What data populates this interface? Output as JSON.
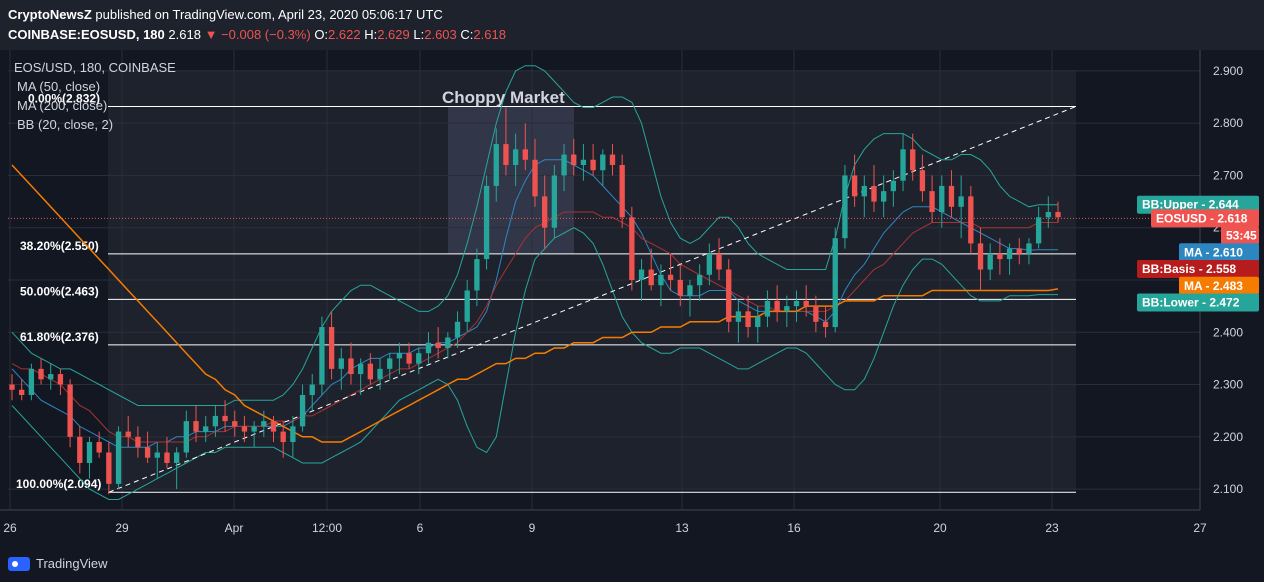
{
  "header": {
    "publisher": "CryptoNewsZ",
    "published_text": " published on TradingView.com, April 23, 2020 05:06:17 UTC",
    "symbol": "COINBASE:EOSUSD, 180",
    "last": "2.618",
    "change": "−",
    "change_text": "0.008 (−0.3%)",
    "o_label": "O:",
    "o": "2.622",
    "h_label": "H:",
    "h": "2.629",
    "l_label": "L:",
    "l": "2.603",
    "c_label": "C:",
    "c": "2.618"
  },
  "legend": {
    "symbol": "EOS/USD, 180, COINBASE",
    "ma50": "MA (50, close)",
    "ma200": "MA (200, close)",
    "bb": "BB (20, close, 2)"
  },
  "annotation": {
    "title": "Choppy Market"
  },
  "fib_levels": [
    {
      "label": "0.00%(2.832)",
      "value": 2.832
    },
    {
      "label": "38.20%(2.550)",
      "value": 2.55
    },
    {
      "label": "50.00%(2.463)",
      "value": 2.463
    },
    {
      "label": "61.80%(2.376)",
      "value": 2.376
    },
    {
      "label": "100.00%(2.094)",
      "value": 2.094
    }
  ],
  "price_tags": [
    {
      "label": "BB:Upper",
      "value": "2.644",
      "color": "#26a69a",
      "price": 2.644
    },
    {
      "label": "EOSUSD",
      "value": "2.618",
      "color": "#ef5350",
      "price": 2.618
    },
    {
      "label": "",
      "value": "53:45",
      "color": "#ef5350",
      "price": 2.585
    },
    {
      "label": "MA",
      "value": "2.610",
      "color": "#2e86c1",
      "price": 2.553
    },
    {
      "label": "BB:Basis",
      "value": "2.558",
      "color": "#b71c1c",
      "price": 2.521
    },
    {
      "label": "MA",
      "value": "2.483",
      "color": "#f57c00",
      "price": 2.489
    },
    {
      "label": "BB:Lower",
      "value": "2.472",
      "color": "#26a69a",
      "price": 2.457
    }
  ],
  "footer": {
    "brand": "TradingView"
  },
  "colors": {
    "up": "#26a69a",
    "down": "#ef5350",
    "ma50": "#ef5350",
    "ma200": "#f57c00",
    "bb": "#26a69a",
    "bg": "#131722",
    "panel": "#1e222d",
    "grid": "#2a2e39"
  },
  "chart_data": {
    "type": "candlestick",
    "y_axis": {
      "ticks": [
        "2.900",
        "2.800",
        "2.700",
        "2.600",
        "2.500",
        "2.400",
        "2.300",
        "2.200",
        "2.100"
      ],
      "range": [
        2.06,
        2.94
      ]
    },
    "x_axis": {
      "ticks": [
        "26",
        "29",
        "Apr",
        "12:00",
        "6",
        "9",
        "13",
        "16",
        "20",
        "23",
        "27"
      ]
    },
    "last_price": 2.618,
    "candles": [
      [
        2.3,
        2.32,
        2.27,
        2.29
      ],
      [
        2.29,
        2.31,
        2.27,
        2.28
      ],
      [
        2.28,
        2.34,
        2.27,
        2.33
      ],
      [
        2.33,
        2.35,
        2.3,
        2.31
      ],
      [
        2.31,
        2.34,
        2.29,
        2.32
      ],
      [
        2.32,
        2.33,
        2.28,
        2.3
      ],
      [
        2.3,
        2.31,
        2.18,
        2.2
      ],
      [
        2.2,
        2.22,
        2.13,
        2.15
      ],
      [
        2.15,
        2.2,
        2.12,
        2.19
      ],
      [
        2.19,
        2.21,
        2.16,
        2.17
      ],
      [
        2.17,
        2.19,
        2.09,
        2.11
      ],
      [
        2.11,
        2.22,
        2.1,
        2.21
      ],
      [
        2.21,
        2.24,
        2.18,
        2.2
      ],
      [
        2.2,
        2.22,
        2.16,
        2.18
      ],
      [
        2.18,
        2.21,
        2.15,
        2.16
      ],
      [
        2.16,
        2.19,
        2.12,
        2.17
      ],
      [
        2.17,
        2.2,
        2.14,
        2.15
      ],
      [
        2.15,
        2.18,
        2.1,
        2.17
      ],
      [
        2.17,
        2.25,
        2.16,
        2.23
      ],
      [
        2.23,
        2.26,
        2.19,
        2.21
      ],
      [
        2.21,
        2.24,
        2.19,
        2.22
      ],
      [
        2.22,
        2.26,
        2.2,
        2.24
      ],
      [
        2.24,
        2.27,
        2.21,
        2.23
      ],
      [
        2.23,
        2.25,
        2.2,
        2.22
      ],
      [
        2.22,
        2.24,
        2.19,
        2.21
      ],
      [
        2.21,
        2.23,
        2.18,
        2.22
      ],
      [
        2.22,
        2.25,
        2.2,
        2.23
      ],
      [
        2.23,
        2.24,
        2.19,
        2.21
      ],
      [
        2.21,
        2.23,
        2.16,
        2.19
      ],
      [
        2.19,
        2.24,
        2.16,
        2.22
      ],
      [
        2.22,
        2.3,
        2.21,
        2.28
      ],
      [
        2.28,
        2.32,
        2.25,
        2.3
      ],
      [
        2.3,
        2.43,
        2.28,
        2.41
      ],
      [
        2.41,
        2.44,
        2.31,
        2.33
      ],
      [
        2.33,
        2.37,
        2.29,
        2.35
      ],
      [
        2.35,
        2.38,
        2.3,
        2.32
      ],
      [
        2.32,
        2.35,
        2.28,
        2.34
      ],
      [
        2.34,
        2.36,
        2.3,
        2.31
      ],
      [
        2.31,
        2.35,
        2.29,
        2.33
      ],
      [
        2.33,
        2.36,
        2.31,
        2.35
      ],
      [
        2.35,
        2.38,
        2.32,
        2.36
      ],
      [
        2.36,
        2.38,
        2.33,
        2.34
      ],
      [
        2.34,
        2.37,
        2.32,
        2.36
      ],
      [
        2.36,
        2.4,
        2.34,
        2.38
      ],
      [
        2.38,
        2.41,
        2.35,
        2.37
      ],
      [
        2.37,
        2.4,
        2.35,
        2.39
      ],
      [
        2.39,
        2.44,
        2.37,
        2.42
      ],
      [
        2.42,
        2.5,
        2.4,
        2.48
      ],
      [
        2.48,
        2.56,
        2.45,
        2.54
      ],
      [
        2.54,
        2.7,
        2.52,
        2.68
      ],
      [
        2.68,
        2.79,
        2.65,
        2.76
      ],
      [
        2.76,
        2.83,
        2.7,
        2.72
      ],
      [
        2.72,
        2.78,
        2.68,
        2.75
      ],
      [
        2.75,
        2.8,
        2.71,
        2.73
      ],
      [
        2.73,
        2.77,
        2.64,
        2.66
      ],
      [
        2.66,
        2.7,
        2.56,
        2.6
      ],
      [
        2.6,
        2.72,
        2.58,
        2.7
      ],
      [
        2.7,
        2.76,
        2.67,
        2.74
      ],
      [
        2.74,
        2.77,
        2.7,
        2.72
      ],
      [
        2.72,
        2.76,
        2.69,
        2.73
      ],
      [
        2.73,
        2.76,
        2.7,
        2.71
      ],
      [
        2.71,
        2.75,
        2.68,
        2.74
      ],
      [
        2.74,
        2.76,
        2.7,
        2.72
      ],
      [
        2.72,
        2.74,
        2.6,
        2.62
      ],
      [
        2.62,
        2.64,
        2.48,
        2.5
      ],
      [
        2.5,
        2.54,
        2.46,
        2.52
      ],
      [
        2.52,
        2.56,
        2.48,
        2.49
      ],
      [
        2.49,
        2.53,
        2.45,
        2.51
      ],
      [
        2.51,
        2.55,
        2.48,
        2.5
      ],
      [
        2.5,
        2.53,
        2.45,
        2.47
      ],
      [
        2.47,
        2.5,
        2.43,
        2.49
      ],
      [
        2.49,
        2.53,
        2.46,
        2.51
      ],
      [
        2.51,
        2.57,
        2.49,
        2.55
      ],
      [
        2.55,
        2.58,
        2.5,
        2.52
      ],
      [
        2.52,
        2.54,
        2.4,
        2.42
      ],
      [
        2.42,
        2.46,
        2.38,
        2.44
      ],
      [
        2.44,
        2.47,
        2.39,
        2.41
      ],
      [
        2.41,
        2.45,
        2.38,
        2.43
      ],
      [
        2.43,
        2.48,
        2.41,
        2.46
      ],
      [
        2.46,
        2.49,
        2.42,
        2.44
      ],
      [
        2.44,
        2.47,
        2.41,
        2.45
      ],
      [
        2.45,
        2.48,
        2.42,
        2.46
      ],
      [
        2.46,
        2.49,
        2.43,
        2.45
      ],
      [
        2.45,
        2.47,
        2.4,
        2.42
      ],
      [
        2.42,
        2.45,
        2.39,
        2.41
      ],
      [
        2.41,
        2.6,
        2.4,
        2.58
      ],
      [
        2.58,
        2.72,
        2.56,
        2.7
      ],
      [
        2.7,
        2.74,
        2.64,
        2.66
      ],
      [
        2.66,
        2.7,
        2.62,
        2.68
      ],
      [
        2.68,
        2.72,
        2.63,
        2.65
      ],
      [
        2.65,
        2.7,
        2.62,
        2.67
      ],
      [
        2.67,
        2.71,
        2.64,
        2.69
      ],
      [
        2.69,
        2.78,
        2.67,
        2.75
      ],
      [
        2.75,
        2.78,
        2.69,
        2.71
      ],
      [
        2.71,
        2.74,
        2.65,
        2.67
      ],
      [
        2.67,
        2.7,
        2.61,
        2.63
      ],
      [
        2.63,
        2.7,
        2.6,
        2.68
      ],
      [
        2.68,
        2.71,
        2.62,
        2.64
      ],
      [
        2.64,
        2.7,
        2.58,
        2.66
      ],
      [
        2.66,
        2.68,
        2.55,
        2.57
      ],
      [
        2.57,
        2.6,
        2.48,
        2.52
      ],
      [
        2.52,
        2.57,
        2.5,
        2.55
      ],
      [
        2.55,
        2.58,
        2.51,
        2.54
      ],
      [
        2.54,
        2.57,
        2.51,
        2.56
      ],
      [
        2.56,
        2.58,
        2.53,
        2.55
      ],
      [
        2.55,
        2.58,
        2.53,
        2.57
      ],
      [
        2.57,
        2.64,
        2.56,
        2.62
      ],
      [
        2.62,
        2.66,
        2.6,
        2.63
      ],
      [
        2.63,
        2.65,
        2.61,
        2.62
      ]
    ],
    "ma50": [
      2.34,
      2.33,
      2.33,
      2.32,
      2.31,
      2.3,
      2.28,
      2.26,
      2.25,
      2.23,
      2.21,
      2.2,
      2.2,
      2.19,
      2.19,
      2.19,
      2.19,
      2.19,
      2.19,
      2.2,
      2.2,
      2.21,
      2.21,
      2.22,
      2.22,
      2.22,
      2.22,
      2.23,
      2.23,
      2.23,
      2.24,
      2.24,
      2.25,
      2.26,
      2.27,
      2.28,
      2.29,
      2.3,
      2.31,
      2.32,
      2.33,
      2.33,
      2.34,
      2.35,
      2.36,
      2.37,
      2.38,
      2.4,
      2.42,
      2.45,
      2.49,
      2.52,
      2.55,
      2.58,
      2.6,
      2.61,
      2.62,
      2.63,
      2.63,
      2.63,
      2.63,
      2.62,
      2.62,
      2.61,
      2.6,
      2.58,
      2.57,
      2.56,
      2.55,
      2.53,
      2.52,
      2.51,
      2.5,
      2.49,
      2.48,
      2.47,
      2.46,
      2.45,
      2.45,
      2.44,
      2.44,
      2.44,
      2.44,
      2.44,
      2.44,
      2.45,
      2.46,
      2.48,
      2.5,
      2.52,
      2.53,
      2.55,
      2.57,
      2.59,
      2.6,
      2.61,
      2.61,
      2.61,
      2.61,
      2.61,
      2.6,
      2.6,
      2.6,
      2.6,
      2.6,
      2.6,
      2.61,
      2.61,
      2.61
    ],
    "ma200": [
      2.72,
      2.7,
      2.68,
      2.66,
      2.64,
      2.62,
      2.6,
      2.58,
      2.56,
      2.54,
      2.52,
      2.5,
      2.48,
      2.46,
      2.44,
      2.42,
      2.4,
      2.38,
      2.36,
      2.34,
      2.32,
      2.31,
      2.29,
      2.28,
      2.26,
      2.25,
      2.24,
      2.23,
      2.22,
      2.21,
      2.2,
      2.2,
      2.19,
      2.19,
      2.19,
      2.2,
      2.21,
      2.22,
      2.23,
      2.24,
      2.25,
      2.26,
      2.27,
      2.28,
      2.29,
      2.3,
      2.31,
      2.31,
      2.32,
      2.33,
      2.34,
      2.34,
      2.35,
      2.35,
      2.36,
      2.36,
      2.37,
      2.37,
      2.38,
      2.38,
      2.38,
      2.39,
      2.39,
      2.39,
      2.4,
      2.4,
      2.4,
      2.41,
      2.41,
      2.41,
      2.42,
      2.42,
      2.42,
      2.42,
      2.43,
      2.43,
      2.43,
      2.43,
      2.44,
      2.44,
      2.44,
      2.44,
      2.45,
      2.45,
      2.45,
      2.45,
      2.46,
      2.46,
      2.46,
      2.46,
      2.47,
      2.47,
      2.47,
      2.47,
      2.47,
      2.48,
      2.48,
      2.48,
      2.48,
      2.48,
      2.48,
      2.48,
      2.48,
      2.48,
      2.48,
      2.48,
      2.48,
      2.48,
      2.483
    ],
    "bb_upper": [
      2.4,
      2.38,
      2.36,
      2.35,
      2.34,
      2.33,
      2.33,
      2.32,
      2.31,
      2.3,
      2.29,
      2.28,
      2.27,
      2.26,
      2.26,
      2.26,
      2.26,
      2.26,
      2.26,
      2.26,
      2.26,
      2.26,
      2.26,
      2.27,
      2.27,
      2.27,
      2.27,
      2.27,
      2.28,
      2.3,
      2.33,
      2.37,
      2.41,
      2.44,
      2.46,
      2.48,
      2.49,
      2.49,
      2.48,
      2.47,
      2.46,
      2.45,
      2.44,
      2.44,
      2.45,
      2.47,
      2.51,
      2.57,
      2.64,
      2.72,
      2.8,
      2.86,
      2.9,
      2.91,
      2.91,
      2.9,
      2.88,
      2.86,
      2.84,
      2.83,
      2.83,
      2.84,
      2.85,
      2.85,
      2.84,
      2.8,
      2.73,
      2.66,
      2.61,
      2.58,
      2.57,
      2.58,
      2.6,
      2.62,
      2.62,
      2.6,
      2.57,
      2.55,
      2.54,
      2.53,
      2.52,
      2.52,
      2.52,
      2.52,
      2.52,
      2.58,
      2.66,
      2.72,
      2.75,
      2.77,
      2.78,
      2.78,
      2.78,
      2.77,
      2.75,
      2.74,
      2.73,
      2.73,
      2.74,
      2.74,
      2.73,
      2.71,
      2.68,
      2.66,
      2.65,
      2.64,
      2.644,
      2.644,
      2.644
    ],
    "bb_lower": [
      2.26,
      2.24,
      2.22,
      2.2,
      2.18,
      2.16,
      2.14,
      2.12,
      2.1,
      2.09,
      2.08,
      2.08,
      2.09,
      2.1,
      2.11,
      2.12,
      2.13,
      2.14,
      2.15,
      2.16,
      2.17,
      2.17,
      2.18,
      2.18,
      2.18,
      2.18,
      2.18,
      2.18,
      2.17,
      2.16,
      2.15,
      2.15,
      2.15,
      2.16,
      2.17,
      2.18,
      2.19,
      2.21,
      2.23,
      2.25,
      2.27,
      2.28,
      2.29,
      2.3,
      2.31,
      2.3,
      2.27,
      2.22,
      2.18,
      2.17,
      2.2,
      2.3,
      2.4,
      2.48,
      2.54,
      2.56,
      2.58,
      2.59,
      2.6,
      2.59,
      2.57,
      2.53,
      2.48,
      2.43,
      2.4,
      2.38,
      2.37,
      2.36,
      2.36,
      2.37,
      2.37,
      2.37,
      2.36,
      2.35,
      2.34,
      2.33,
      2.33,
      2.34,
      2.35,
      2.36,
      2.37,
      2.37,
      2.36,
      2.34,
      2.32,
      2.3,
      2.29,
      2.29,
      2.31,
      2.35,
      2.4,
      2.45,
      2.49,
      2.52,
      2.54,
      2.54,
      2.53,
      2.51,
      2.49,
      2.47,
      2.46,
      2.46,
      2.46,
      2.47,
      2.47,
      2.47,
      2.472,
      2.472,
      2.472
    ],
    "bb_basis": [
      2.33,
      2.31,
      2.29,
      2.27,
      2.26,
      2.25,
      2.24,
      2.22,
      2.21,
      2.2,
      2.19,
      2.18,
      2.18,
      2.18,
      2.18,
      2.19,
      2.19,
      2.2,
      2.2,
      2.21,
      2.21,
      2.21,
      2.22,
      2.22,
      2.22,
      2.22,
      2.22,
      2.22,
      2.22,
      2.23,
      2.24,
      2.26,
      2.28,
      2.3,
      2.31,
      2.33,
      2.34,
      2.35,
      2.35,
      2.36,
      2.36,
      2.36,
      2.37,
      2.37,
      2.38,
      2.38,
      2.39,
      2.4,
      2.41,
      2.44,
      2.5,
      2.58,
      2.65,
      2.69,
      2.72,
      2.73,
      2.73,
      2.73,
      2.72,
      2.71,
      2.7,
      2.68,
      2.66,
      2.64,
      2.62,
      2.59,
      2.55,
      2.51,
      2.48,
      2.47,
      2.47,
      2.47,
      2.48,
      2.48,
      2.48,
      2.46,
      2.45,
      2.44,
      2.44,
      2.44,
      2.44,
      2.44,
      2.44,
      2.43,
      2.42,
      2.44,
      2.48,
      2.51,
      2.53,
      2.56,
      2.59,
      2.61,
      2.63,
      2.64,
      2.64,
      2.64,
      2.63,
      2.62,
      2.61,
      2.6,
      2.59,
      2.58,
      2.57,
      2.56,
      2.56,
      2.557,
      2.558,
      2.558,
      2.558
    ]
  }
}
